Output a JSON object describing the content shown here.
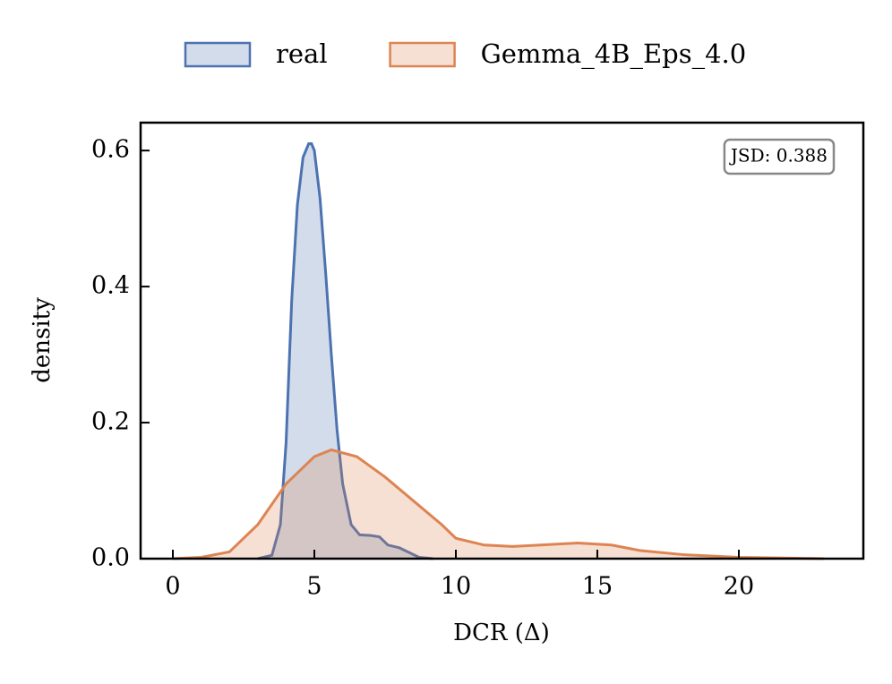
{
  "chart_data": {
    "type": "area",
    "x_label": "DCR (Δ)",
    "y_label": "density",
    "annotations": [
      "JSD: 0.388"
    ],
    "legend": "top",
    "grid": false,
    "xlim": [
      -1.14,
      24.4
    ],
    "xticks": [
      0,
      5,
      10,
      15,
      20
    ],
    "ylim": [
      0,
      0.641
    ],
    "yticks": [
      {
        "value": 0,
        "label": "0.0"
      },
      0.2,
      0.4,
      0.6
    ],
    "series": [
      {
        "name": "real",
        "color": "#4c72b0",
        "x": [
          3.0,
          3.5,
          3.8,
          4.0,
          4.2,
          4.4,
          4.6,
          4.8,
          4.9,
          5.0,
          5.2,
          5.4,
          5.6,
          5.8,
          6.0,
          6.3,
          6.6,
          7.0,
          7.3,
          7.6,
          8.0,
          8.3,
          8.7,
          9.2
        ],
        "values": [
          0,
          0.005,
          0.05,
          0.17,
          0.38,
          0.52,
          0.59,
          0.61,
          0.61,
          0.6,
          0.53,
          0.42,
          0.3,
          0.19,
          0.11,
          0.05,
          0.035,
          0.034,
          0.032,
          0.02,
          0.016,
          0.01,
          0.002,
          0
        ]
      },
      {
        "name": "Gemma_4B_Eps_4.0",
        "color": "#dd8452",
        "x": [
          0,
          1,
          2,
          3,
          4,
          5,
          5.6,
          6.5,
          7.5,
          8.5,
          9.5,
          10,
          11,
          12,
          13,
          14.3,
          15.5,
          16.5,
          18,
          20,
          23
        ],
        "values": [
          0,
          0.002,
          0.01,
          0.05,
          0.11,
          0.15,
          0.16,
          0.15,
          0.12,
          0.085,
          0.05,
          0.03,
          0.02,
          0.018,
          0.02,
          0.023,
          0.02,
          0.012,
          0.006,
          0.002,
          0
        ]
      }
    ]
  }
}
